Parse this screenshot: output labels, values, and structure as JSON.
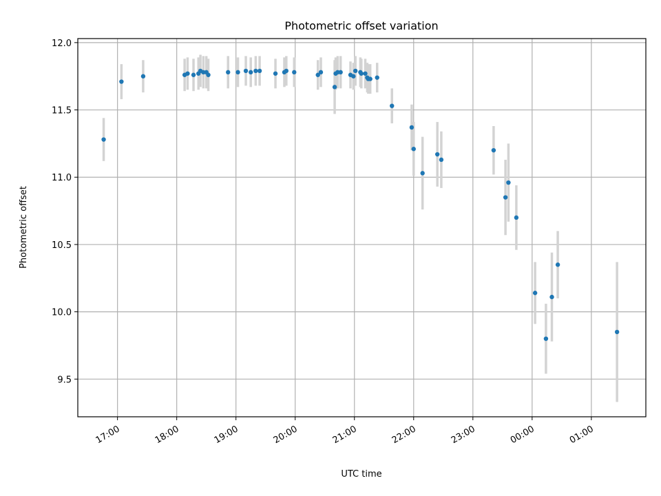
{
  "chart_data": {
    "type": "scatter",
    "title": "Photometric offset variation",
    "xlabel": "UTC time",
    "ylabel": "Photometric offset",
    "x_tick_labels": [
      "17:00",
      "18:00",
      "19:00",
      "20:00",
      "21:00",
      "22:00",
      "23:00",
      "00:00",
      "01:00"
    ],
    "y_ticks": [
      9.5,
      10.0,
      10.5,
      11.0,
      11.5,
      12.0
    ],
    "y_tick_labels": [
      "9.5",
      "10.0",
      "10.5",
      "11.0",
      "11.5",
      "12.0"
    ],
    "x_range_hours": [
      16.33,
      25.92
    ],
    "ylim": [
      9.22,
      12.03
    ],
    "grid": true,
    "colors": {
      "point": "#1f77b4",
      "errorbar": "#d3d3d3",
      "grid": "#b0b0b0"
    },
    "series": [
      {
        "x": [
          "16:46",
          "17:04",
          "17:26",
          "18:08",
          "18:11",
          "18:17",
          "18:22",
          "18:24",
          "18:27",
          "18:30",
          "18:32",
          "18:52",
          "19:02",
          "19:10",
          "19:15",
          "19:20",
          "19:24",
          "19:40",
          "19:49",
          "19:51",
          "19:59",
          "20:23",
          "20:26",
          "20:40",
          "20:41",
          "20:43",
          "20:46",
          "20:56",
          "20:59",
          "21:01",
          "21:06",
          "21:07",
          "21:11",
          "21:13",
          "21:14",
          "21:16",
          "21:23",
          "21:38",
          "21:58",
          "22:00",
          "22:09",
          "22:24",
          "22:28",
          "23:21",
          "23:33",
          "23:36",
          "23:44",
          "00:03",
          "00:14",
          "00:20",
          "00:26",
          "01:26"
        ],
        "y": [
          11.28,
          11.71,
          11.75,
          11.76,
          11.77,
          11.76,
          11.77,
          11.79,
          11.78,
          11.78,
          11.76,
          11.78,
          11.78,
          11.79,
          11.78,
          11.79,
          11.79,
          11.77,
          11.78,
          11.79,
          11.78,
          11.76,
          11.78,
          11.67,
          11.77,
          11.78,
          11.78,
          11.76,
          11.75,
          11.79,
          11.78,
          11.77,
          11.77,
          11.74,
          11.73,
          11.73,
          11.74,
          11.53,
          11.37,
          11.21,
          11.03,
          11.17,
          11.13,
          11.2,
          10.85,
          10.96,
          10.7,
          10.14,
          9.8,
          10.11,
          10.35,
          9.85
        ],
        "yerr": [
          0.16,
          0.13,
          0.12,
          0.12,
          0.12,
          0.12,
          0.12,
          0.12,
          0.12,
          0.12,
          0.12,
          0.12,
          0.11,
          0.11,
          0.11,
          0.11,
          0.11,
          0.11,
          0.11,
          0.11,
          0.11,
          0.11,
          0.11,
          0.2,
          0.12,
          0.12,
          0.12,
          0.1,
          0.1,
          0.11,
          0.11,
          0.11,
          0.11,
          0.11,
          0.11,
          0.11,
          0.11,
          0.13,
          0.17,
          0.2,
          0.27,
          0.24,
          0.21,
          0.18,
          0.28,
          0.29,
          0.24,
          0.23,
          0.26,
          0.33,
          0.25,
          0.52
        ]
      }
    ]
  }
}
